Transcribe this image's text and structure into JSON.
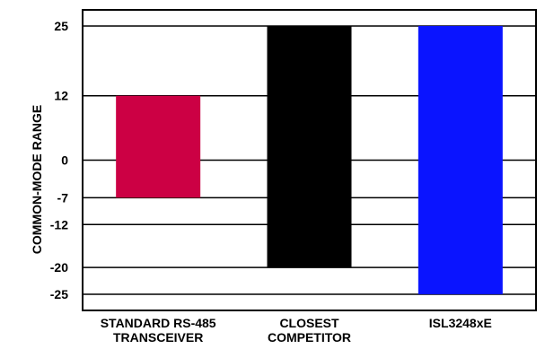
{
  "chart_data": {
    "type": "bar",
    "subtype": "floating-range",
    "ylabel": "COMMON-MODE RANGE",
    "xlabel": "",
    "ylim": [
      -28,
      28
    ],
    "y_ticks": [
      25,
      12,
      0,
      -7,
      -12,
      -20,
      -25
    ],
    "grid": "horizontal lines at tick values",
    "categories": [
      {
        "label_lines": [
          "STANDARD RS-485",
          "TRANSCEIVER"
        ],
        "low": -7,
        "high": 12,
        "color": "#cc0044"
      },
      {
        "label_lines": [
          "CLOSEST",
          "COMPETITOR"
        ],
        "low": -20,
        "high": 25,
        "color": "#000000"
      },
      {
        "label_lines": [
          "ISL3248xE"
        ],
        "low": -25,
        "high": 25,
        "color": "#0a14ff"
      }
    ]
  }
}
